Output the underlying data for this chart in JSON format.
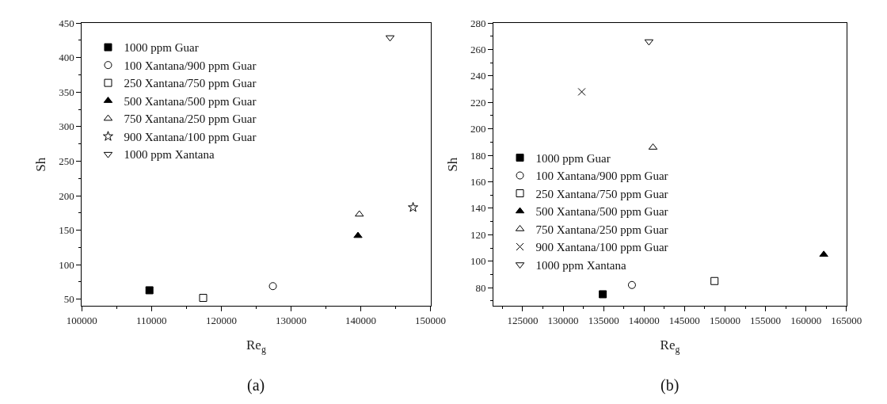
{
  "chart_data": [
    {
      "type": "scatter",
      "xlabel": "Re$_{g}$",
      "ylabel": "Sh",
      "xlim": [
        100000,
        150000
      ],
      "ylim": [
        40,
        450
      ],
      "xticks": [
        100000,
        110000,
        120000,
        130000,
        140000,
        150000
      ],
      "yticks": [
        50,
        100,
        150,
        200,
        250,
        300,
        350,
        400,
        450
      ],
      "legend": "top left",
      "annotations": [
        "(a)"
      ],
      "series": [
        {
          "name": "1000 ppm Guar",
          "color": "#000000",
          "marker": "square",
          "x": [
            109700
          ],
          "values": [
            63
          ]
        },
        {
          "name": "100 Xantana/900 ppm Guar",
          "color": "#000000",
          "marker": "circle-open",
          "x": [
            127400
          ],
          "values": [
            69
          ]
        },
        {
          "name": "250 Xantana/750 ppm Guar",
          "color": "#000000",
          "marker": "square-open",
          "x": [
            117400
          ],
          "values": [
            52
          ]
        },
        {
          "name": "500 Xantana/500 ppm Guar",
          "color": "#000000",
          "marker": "triangle",
          "x": [
            139600
          ],
          "values": [
            142
          ]
        },
        {
          "name": "750 Xantana/250 ppm Guar",
          "color": "#000000",
          "marker": "triangle-open",
          "x": [
            139800
          ],
          "values": [
            173
          ]
        },
        {
          "name": "900 Xantana/100 ppm Guar",
          "color": "#000000",
          "marker": "star-open",
          "x": [
            147500
          ],
          "values": [
            183
          ]
        },
        {
          "name": "1000 ppm Xantana",
          "color": "#000000",
          "marker": "triangle-down-open",
          "x": [
            144200
          ],
          "values": [
            429
          ]
        }
      ]
    },
    {
      "type": "scatter",
      "xlabel": "Re$_{g}$",
      "ylabel": "Sh",
      "xlim": [
        121400,
        165000
      ],
      "ylim": [
        66,
        280
      ],
      "xticks": [
        125000,
        130000,
        135000,
        140000,
        145000,
        150000,
        155000,
        160000,
        165000
      ],
      "yticks": [
        80,
        100,
        120,
        140,
        160,
        180,
        200,
        220,
        240,
        260,
        280
      ],
      "legend": "bottom left",
      "annotations": [
        "(b)"
      ],
      "series": [
        {
          "name": "1000 ppm Guar",
          "color": "#000000",
          "marker": "square",
          "x": [
            134900
          ],
          "values": [
            75
          ]
        },
        {
          "name": "100 Xantana/900 ppm Guar",
          "color": "#000000",
          "marker": "circle-open",
          "x": [
            138500
          ],
          "values": [
            82
          ]
        },
        {
          "name": "250 Xantana/750 ppm Guar",
          "color": "#000000",
          "marker": "square-open",
          "x": [
            148700
          ],
          "values": [
            85
          ]
        },
        {
          "name": "500 Xantana/500 ppm Guar",
          "color": "#000000",
          "marker": "triangle",
          "x": [
            162200
          ],
          "values": [
            105
          ]
        },
        {
          "name": "750 Xantana/250 ppm Guar",
          "color": "#000000",
          "marker": "triangle-open",
          "x": [
            141100
          ],
          "values": [
            186
          ]
        },
        {
          "name": "900 Xantana/100 ppm Guar",
          "color": "#000000",
          "marker": "cross",
          "x": [
            132300
          ],
          "values": [
            228
          ]
        },
        {
          "name": "1000 ppm Xantana",
          "color": "#000000",
          "marker": "triangle-down-open",
          "x": [
            140600
          ],
          "values": [
            266
          ]
        }
      ]
    }
  ]
}
